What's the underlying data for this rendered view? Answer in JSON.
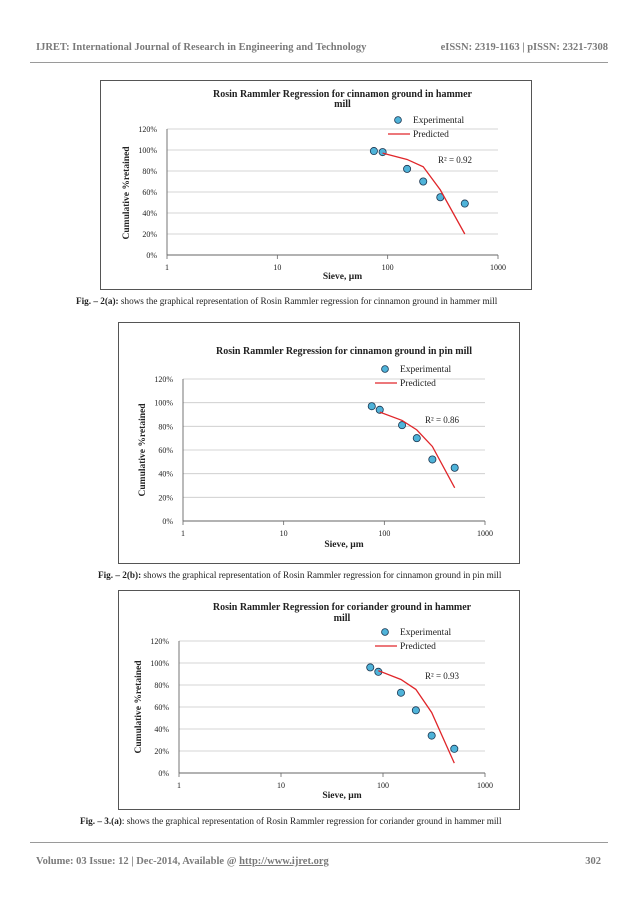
{
  "header": {
    "journal": "IJRET: International Journal of Research in Engineering and Technology",
    "issn": "eISSN: 2319-1163 | pISSN: 2321-7308"
  },
  "footer": {
    "volume": "Volume: 03 Issue: 12 | Dec-2014, Available @ ",
    "url": "http://www.ijret.org",
    "page": "302"
  },
  "captions": [
    {
      "label": "Fig. – 2(a):",
      "text": " shows the graphical representation of Rosin Rammler regression for cinnamon ground in hammer mill"
    },
    {
      "label": "Fig. – 2(b):",
      "text": " shows the graphical representation of Rosin Rammler regression for cinnamon ground in pin mill"
    },
    {
      "label": "Fig. – 3.(a)",
      "text": ": shows the graphical representation of Rosin Rammler regression for coriander ground in hammer mill"
    }
  ],
  "colors": {
    "marker": "#4fb3d9",
    "marker_stroke": "#1a3550",
    "line": "#e0262a",
    "grid": "#c8c8c8"
  },
  "chart_data": [
    {
      "type": "scatter",
      "title": "Rosin Rammler Regression for cinnamon ground in hammer mill",
      "title_lines": [
        "Rosin Rammler Regression for cinnamon ground in hammer",
        "mill"
      ],
      "xlabel": "Sieve, µm",
      "ylabel": "Cumulative %retained",
      "xscale": "log",
      "xlim": [
        1,
        1000
      ],
      "ylim": [
        0,
        120
      ],
      "xticks": [
        "1",
        "10",
        "100",
        "1000"
      ],
      "yticks": [
        "0%",
        "20%",
        "40%",
        "60%",
        "80%",
        "100%",
        "120%"
      ],
      "grid": "horizontal",
      "legend_position": "top-right",
      "r2": "R² = 0.92",
      "series": [
        {
          "name": "Experimental",
          "kind": "markers",
          "x": [
            75,
            90,
            150,
            210,
            300,
            500
          ],
          "y": [
            99,
            98,
            82,
            70,
            55,
            49
          ]
        },
        {
          "name": "Predicted",
          "kind": "line",
          "x": [
            90,
            150,
            210,
            300,
            500
          ],
          "y": [
            97,
            91,
            84,
            62,
            20
          ]
        }
      ]
    },
    {
      "type": "scatter",
      "title": "Rosin Rammler Regression for cinnamon ground in pin mill",
      "title_lines": [
        "Rosin Rammler Regression for cinnamon ground in pin mill"
      ],
      "xlabel": "Sieve, µm",
      "ylabel": "Cumulative %retained",
      "xscale": "log",
      "xlim": [
        1,
        1000
      ],
      "ylim": [
        0,
        120
      ],
      "xticks": [
        "1",
        "10",
        "100",
        "1000"
      ],
      "yticks": [
        "0%",
        "20%",
        "40%",
        "60%",
        "80%",
        "100%",
        "120%"
      ],
      "grid": "horizontal",
      "legend_position": "top-right",
      "r2": "R² = 0.86",
      "series": [
        {
          "name": "Experimental",
          "kind": "markers",
          "x": [
            75,
            90,
            150,
            210,
            300,
            500
          ],
          "y": [
            97,
            94,
            81,
            70,
            52,
            45
          ]
        },
        {
          "name": "Predicted",
          "kind": "line",
          "x": [
            90,
            150,
            210,
            300,
            500
          ],
          "y": [
            92,
            85,
            77,
            63,
            28
          ]
        }
      ]
    },
    {
      "type": "scatter",
      "title": "Rosin Rammler Regression for coriander ground in hammer mill",
      "title_lines": [
        "Rosin Rammler Regression for coriander ground in hammer",
        "mill"
      ],
      "xlabel": "Sieve, µm",
      "ylabel": "Cumulative %retained",
      "xscale": "log",
      "xlim": [
        1,
        1000
      ],
      "ylim": [
        0,
        120
      ],
      "xticks": [
        "1",
        "10",
        "100",
        "1000"
      ],
      "yticks": [
        "0%",
        "20%",
        "40%",
        "60%",
        "80%",
        "100%",
        "120%"
      ],
      "grid": "horizontal",
      "legend_position": "top-right",
      "r2": "R² = 0.93",
      "series": [
        {
          "name": "Experimental",
          "kind": "markers",
          "x": [
            75,
            90,
            150,
            210,
            300,
            500
          ],
          "y": [
            96,
            92,
            73,
            57,
            34,
            22
          ]
        },
        {
          "name": "Predicted",
          "kind": "line",
          "x": [
            90,
            150,
            210,
            300,
            500
          ],
          "y": [
            93,
            85,
            76,
            55,
            9
          ]
        }
      ]
    }
  ]
}
